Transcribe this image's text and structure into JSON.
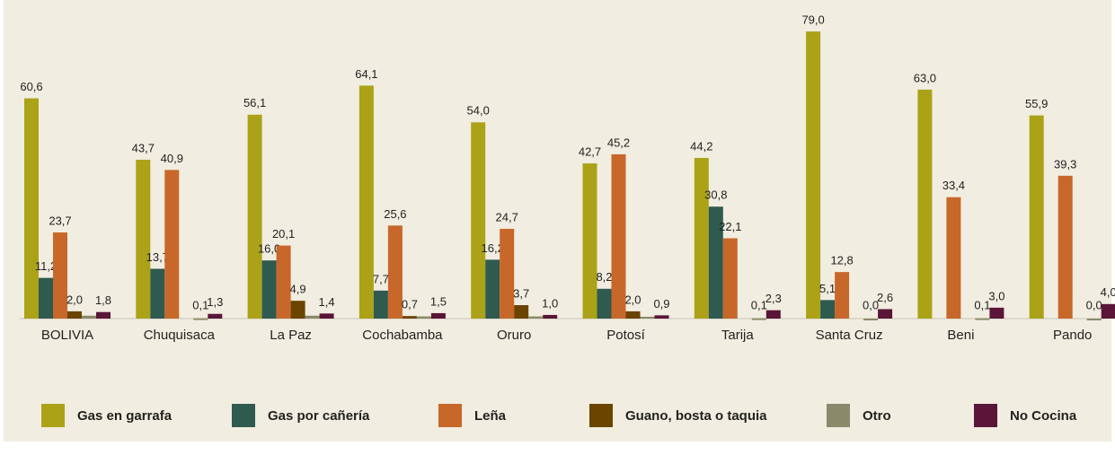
{
  "chart_data": {
    "type": "bar",
    "categories": [
      "BOLIVIA",
      "Chuquisaca",
      "La Paz",
      "Cochabamba",
      "Oruro",
      "Potosí",
      "Tarija",
      "Santa Cruz",
      "Beni",
      "Pando"
    ],
    "ylim": [
      0,
      80
    ],
    "legend": "bottom",
    "series": [
      {
        "name": "Gas en garrafa",
        "color": "#aba218",
        "values": [
          60.6,
          43.7,
          56.1,
          64.1,
          54.0,
          42.7,
          44.2,
          79.0,
          63.0,
          55.9
        ],
        "value_labels": [
          "60,6",
          "43,7",
          "56,1",
          "64,1",
          "54,0",
          "42,7",
          "44,2",
          "79,0",
          "63,0",
          "55,9"
        ]
      },
      {
        "name": "Gas por cañería",
        "color": "#2f5a50",
        "values": [
          11.2,
          13.7,
          16.0,
          7.7,
          16.2,
          8.2,
          30.8,
          5.1,
          null,
          null
        ],
        "value_labels": [
          "11,2",
          "13,7",
          "16,0",
          "7,7",
          "16,2",
          "8,2",
          "30,8",
          "5,1",
          null,
          null
        ]
      },
      {
        "name": "Leña",
        "color": "#c8672a",
        "values": [
          23.7,
          40.9,
          20.1,
          25.6,
          24.7,
          45.2,
          22.1,
          12.8,
          33.4,
          39.3
        ],
        "value_labels": [
          "23,7",
          "40,9",
          "20,1",
          "25,6",
          "24,7",
          "45,2",
          "22,1",
          "12,8",
          "33,4",
          "39,3"
        ]
      },
      {
        "name": "Guano, bosta o taquia",
        "color": "#6b4400",
        "values": [
          2.0,
          null,
          4.9,
          0.7,
          3.7,
          2.0,
          null,
          null,
          null,
          null
        ],
        "value_labels": [
          "2,0",
          null,
          "4,9",
          "0,7",
          "3,7",
          "2,0",
          null,
          null,
          null,
          null
        ]
      },
      {
        "name": "Otro",
        "color": "#8a8a6a",
        "values": [
          0.8,
          0.1,
          0.8,
          0.6,
          0.6,
          0.5,
          0.1,
          0.0,
          0.1,
          0.0
        ],
        "value_labels": [
          null,
          "0,1",
          null,
          null,
          null,
          null,
          "0,1",
          "0,0",
          "0,1",
          "0,0"
        ]
      },
      {
        "name": "No Cocina",
        "color": "#5a1538",
        "values": [
          1.8,
          1.3,
          1.4,
          1.5,
          1.0,
          0.9,
          2.3,
          2.6,
          3.0,
          4.0
        ],
        "value_labels": [
          "1,8",
          "1,3",
          "1,4",
          "1,5",
          "1,0",
          "0,9",
          "2,3",
          "2,6",
          "3,0",
          "4,0"
        ]
      }
    ]
  }
}
